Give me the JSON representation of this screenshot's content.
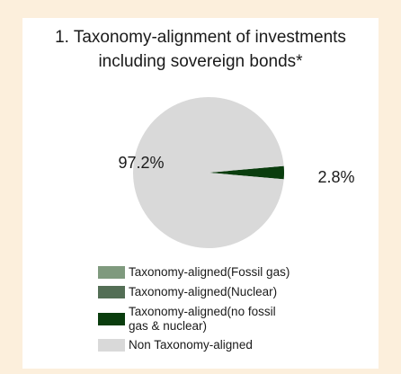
{
  "chart_data": {
    "type": "pie",
    "title_lines": [
      "1. Taxonomy-alignment of investments",
      "including sovereign bonds*"
    ],
    "slices": [
      {
        "label": "Taxonomy-aligned(Fossil gas)",
        "value": 0.0,
        "color": "#7f9a7e"
      },
      {
        "label": "Taxonomy-aligned(Nuclear)",
        "value": 0.0,
        "color": "#536e55"
      },
      {
        "label": "Taxonomy-aligned(no fossil gas & nuclear)",
        "value": 2.8,
        "color": "#0a3d0e"
      },
      {
        "label": "Non Taxonomy-aligned",
        "value": 97.2,
        "color": "#d9d9d9"
      }
    ],
    "data_labels": [
      "97.2%",
      "2.8%"
    ],
    "legend": {
      "position": "bottom",
      "items": [
        {
          "label": "Taxonomy-aligned(Fossil gas)",
          "color": "#7f9a7e"
        },
        {
          "label": "Taxonomy-aligned(Nuclear)",
          "color": "#536e55"
        },
        {
          "label_lines": [
            "Taxonomy-aligned(no fossil",
            "gas & nuclear)"
          ],
          "color": "#0a3d0e"
        },
        {
          "label": "Non Taxonomy-aligned",
          "color": "#d9d9d9"
        }
      ]
    }
  }
}
